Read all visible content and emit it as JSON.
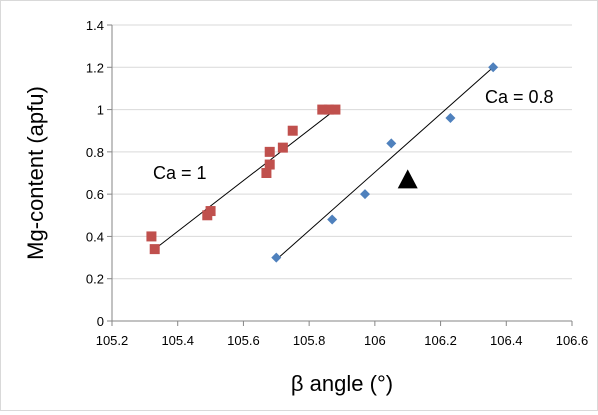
{
  "chart_data": {
    "type": "scatter",
    "xlabel": "β angle (°)",
    "ylabel": "Mg-content (apfu)",
    "xlim": [
      105.2,
      106.6
    ],
    "ylim": [
      0,
      1.4
    ],
    "xticks": [
      105.2,
      105.4,
      105.6,
      105.8,
      106,
      106.2,
      106.4,
      106.6
    ],
    "xtick_labels": [
      "105.2",
      "105.4",
      "105.6",
      "105.8",
      "106",
      "106.2",
      "106.4",
      "106.6"
    ],
    "yticks": [
      0,
      0.2,
      0.4,
      0.6,
      0.8,
      1,
      1.2,
      1.4
    ],
    "ytick_labels": [
      "0",
      "0.2",
      "0.4",
      "0.6",
      "0.8",
      "1",
      "1.2",
      "1.4"
    ],
    "grid": "horizontal",
    "legend": "none",
    "series": [
      {
        "label": "Ca = 1",
        "marker": "square",
        "color": "#c0504d",
        "points": [
          [
            105.32,
            0.4
          ],
          [
            105.33,
            0.34
          ],
          [
            105.49,
            0.5
          ],
          [
            105.5,
            0.52
          ],
          [
            105.67,
            0.7
          ],
          [
            105.68,
            0.74
          ],
          [
            105.68,
            0.8
          ],
          [
            105.72,
            0.82
          ],
          [
            105.75,
            0.9
          ],
          [
            105.84,
            1.0
          ],
          [
            105.86,
            1.0
          ],
          [
            105.88,
            1.0
          ]
        ],
        "trendline": [
          [
            105.33,
            0.34
          ],
          [
            105.88,
            1.0
          ]
        ]
      },
      {
        "label": "Ca = 0.8",
        "marker": "diamond",
        "color": "#4f81bd",
        "points": [
          [
            105.7,
            0.3
          ],
          [
            105.87,
            0.48
          ],
          [
            105.97,
            0.6
          ],
          [
            106.05,
            0.84
          ],
          [
            106.23,
            0.96
          ],
          [
            106.36,
            1.2
          ]
        ],
        "trendline": [
          [
            105.7,
            0.29
          ],
          [
            106.36,
            1.2
          ]
        ]
      }
    ],
    "extra_markers": [
      {
        "marker": "triangle",
        "color": "#000000",
        "x": 106.1,
        "y": 0.67
      }
    ]
  }
}
